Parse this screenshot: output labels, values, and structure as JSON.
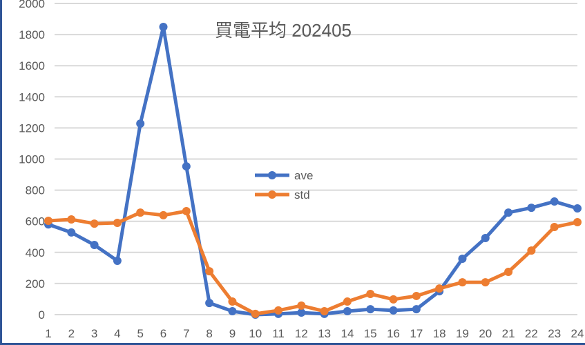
{
  "chart_data": {
    "type": "line",
    "title": "買電平均 202405",
    "xlabel": "",
    "ylabel": "",
    "x": [
      1,
      2,
      3,
      4,
      5,
      6,
      7,
      8,
      9,
      10,
      11,
      12,
      13,
      14,
      15,
      16,
      17,
      18,
      19,
      20,
      21,
      22,
      23,
      24
    ],
    "categories": [
      "1",
      "2",
      "3",
      "4",
      "5",
      "6",
      "7",
      "8",
      "9",
      "10",
      "11",
      "12",
      "13",
      "14",
      "15",
      "16",
      "17",
      "18",
      "19",
      "20",
      "21",
      "22",
      "23",
      "24"
    ],
    "series": [
      {
        "name": "ave",
        "color": "#4472c4",
        "values": [
          580,
          528,
          448,
          346,
          1228,
          1849,
          953,
          75,
          22,
          0,
          5,
          13,
          5,
          22,
          35,
          27,
          35,
          150,
          359,
          492,
          656,
          687,
          727,
          683
        ]
      },
      {
        "name": "std",
        "color": "#ed7d31",
        "values": [
          603,
          612,
          585,
          590,
          656,
          639,
          665,
          279,
          84,
          5,
          27,
          58,
          22,
          84,
          133,
          98,
          120,
          168,
          208,
          208,
          275,
          412,
          563,
          594
        ]
      }
    ],
    "ylim": [
      0,
      2000
    ],
    "yticks": [
      0,
      200,
      400,
      600,
      800,
      1000,
      1200,
      1400,
      1600,
      1800,
      2000
    ],
    "grid": true,
    "legend_position": "inside-center"
  },
  "colors": {
    "frame_border": "#2f5597",
    "gridline": "#d9d9d9",
    "text": "#595959"
  }
}
